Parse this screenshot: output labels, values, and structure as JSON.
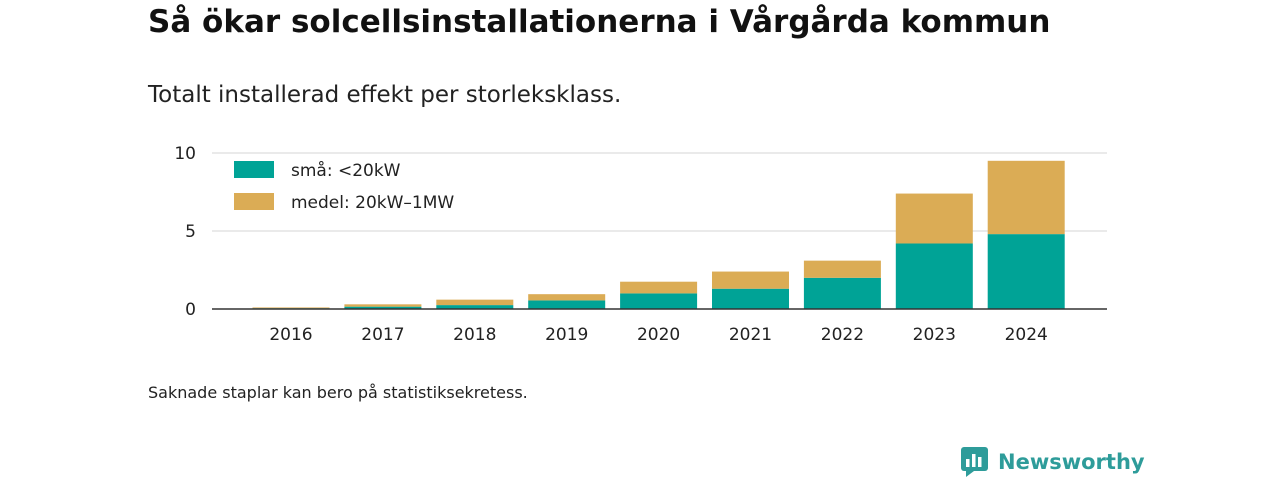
{
  "title": "Så ökar solcellsinstallationerna i Vårgårda kommun",
  "subtitle": "Totalt installerad effekt per storleksklass.",
  "note": "Saknade staplar kan bero på statistiksekretess.",
  "brand": {
    "name": "Newsworthy",
    "color": "#2e9c9a",
    "icon": "newsworthy-logo-icon"
  },
  "colors": {
    "small": "#00a396",
    "medium": "#dbac55",
    "grid": "#dddddd",
    "axis": "#333333"
  },
  "chart_data": {
    "type": "bar",
    "stacked": true,
    "categories": [
      "2016",
      "2017",
      "2018",
      "2019",
      "2020",
      "2021",
      "2022",
      "2023",
      "2024"
    ],
    "series": [
      {
        "name": "små: <20kW",
        "values": [
          0.05,
          0.15,
          0.25,
          0.55,
          1.0,
          1.3,
          2.0,
          4.2,
          4.8
        ]
      },
      {
        "name": "medel: 20kW–1MW",
        "values": [
          0.05,
          0.15,
          0.35,
          0.4,
          0.75,
          1.1,
          1.1,
          3.2,
          4.7
        ]
      }
    ],
    "yticks": [
      "0",
      "5",
      "10"
    ],
    "ylim": [
      0,
      10
    ],
    "grid": true,
    "legend_position": "top-left"
  }
}
